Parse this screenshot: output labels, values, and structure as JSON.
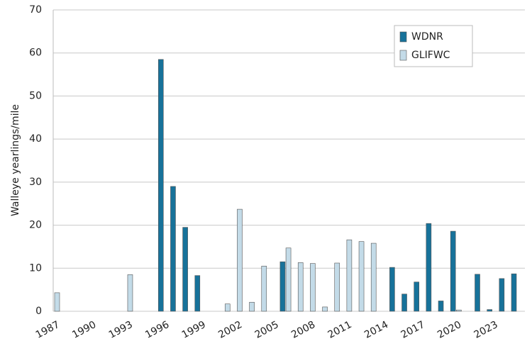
{
  "chart_data": {
    "type": "bar",
    "y_label": "Walleye yearlings/mile",
    "categories": [
      "1987",
      null,
      null,
      "1990",
      null,
      null,
      "1993",
      null,
      null,
      "1996",
      null,
      null,
      "1999",
      null,
      null,
      "2002",
      null,
      null,
      "2005",
      null,
      null,
      "2008",
      null,
      null,
      "2011",
      null,
      null,
      "2014",
      null,
      null,
      "2017",
      null,
      null,
      "2020",
      null,
      null,
      "2023",
      null
    ],
    "series": [
      {
        "name": "WDNR",
        "color": "#17729a",
        "values": [
          null,
          null,
          null,
          null,
          null,
          null,
          null,
          null,
          58.5,
          29,
          19.5,
          8.3,
          null,
          null,
          null,
          null,
          null,
          null,
          11.5,
          null,
          null,
          null,
          null,
          null,
          null,
          null,
          null,
          10.2,
          4.0,
          6.8,
          20.4,
          2.4,
          18.6,
          null,
          8.6,
          0.4,
          7.6,
          8.7
        ]
      },
      {
        "name": "GLIFWC",
        "color": "#c3dbe8",
        "values": [
          4.3,
          null,
          null,
          null,
          null,
          null,
          8.5,
          null,
          null,
          null,
          null,
          null,
          null,
          null,
          1.7,
          23.7,
          2.1,
          10.5,
          null,
          14.7,
          11.3,
          11.1,
          1.0,
          11.2,
          16.6,
          16.2,
          15.8,
          null,
          null,
          null,
          null,
          null,
          null,
          0.3,
          null,
          null,
          null,
          null
        ]
      }
    ],
    "ylim": [
      0,
      70
    ],
    "yticks": [
      0,
      10,
      20,
      30,
      40,
      50,
      60,
      70
    ],
    "grid": true,
    "legend": "upper right"
  }
}
